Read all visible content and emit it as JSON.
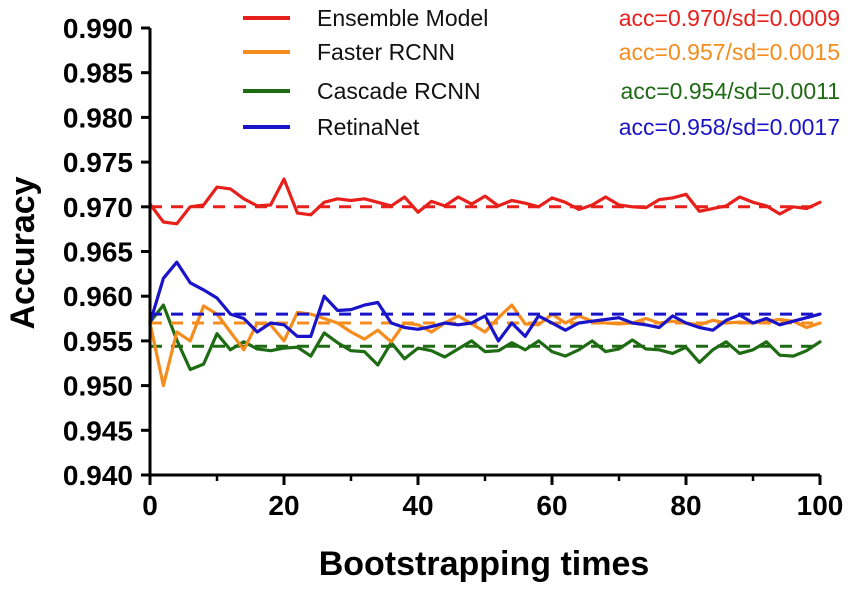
{
  "chart_data": {
    "type": "line",
    "title": "",
    "xlabel": "Bootstrapping times",
    "ylabel": "Accuracy",
    "xlim": [
      0,
      100
    ],
    "ylim": [
      0.94,
      0.99
    ],
    "xticks": [
      0,
      20,
      40,
      60,
      80,
      100
    ],
    "xtick_labels": [
      "0",
      "20",
      "40",
      "60",
      "80",
      "100"
    ],
    "yticks": [
      0.94,
      0.945,
      0.95,
      0.955,
      0.96,
      0.965,
      0.97,
      0.975,
      0.98,
      0.985,
      0.99
    ],
    "ytick_labels": [
      "0.940",
      "0.945",
      "0.950",
      "0.955",
      "0.960",
      "0.965",
      "0.970",
      "0.975",
      "0.980",
      "0.985",
      "0.990"
    ],
    "grid": false,
    "legend_position": "top-right",
    "x": [
      0,
      2,
      4,
      6,
      8,
      10,
      12,
      14,
      16,
      18,
      20,
      22,
      24,
      26,
      28,
      30,
      32,
      34,
      36,
      38,
      40,
      42,
      44,
      46,
      48,
      50,
      52,
      54,
      56,
      58,
      60,
      62,
      64,
      66,
      68,
      70,
      72,
      74,
      76,
      78,
      80,
      82,
      84,
      86,
      88,
      90,
      92,
      94,
      96,
      98,
      100
    ],
    "series": [
      {
        "name": "Ensemble Model",
        "color": "#e8201c",
        "stat": "acc=0.970/sd=0.0009",
        "mean": 0.97,
        "values": [
          0.9703,
          0.9683,
          0.9681,
          0.97,
          0.9702,
          0.9722,
          0.972,
          0.9709,
          0.9701,
          0.9702,
          0.9731,
          0.9693,
          0.9691,
          0.9705,
          0.9709,
          0.9707,
          0.9709,
          0.9705,
          0.9701,
          0.9711,
          0.9694,
          0.9706,
          0.9701,
          0.9711,
          0.9703,
          0.9712,
          0.9701,
          0.9707,
          0.9704,
          0.97,
          0.971,
          0.9705,
          0.9697,
          0.9702,
          0.9711,
          0.9702,
          0.97,
          0.9699,
          0.9708,
          0.971,
          0.9714,
          0.9695,
          0.9698,
          0.9701,
          0.9711,
          0.9705,
          0.9701,
          0.9692,
          0.97,
          0.9698,
          0.9705
        ]
      },
      {
        "name": "Faster RCNN",
        "color": "#f58d1e",
        "stat": "acc=0.957/sd=0.0015",
        "mean": 0.957,
        "values": [
          0.957,
          0.95,
          0.956,
          0.955,
          0.9589,
          0.958,
          0.956,
          0.954,
          0.957,
          0.9568,
          0.955,
          0.9582,
          0.958,
          0.9575,
          0.957,
          0.956,
          0.9552,
          0.9562,
          0.9549,
          0.957,
          0.9568,
          0.956,
          0.957,
          0.9578,
          0.9569,
          0.956,
          0.9576,
          0.959,
          0.9569,
          0.9568,
          0.958,
          0.957,
          0.9578,
          0.9572,
          0.957,
          0.9569,
          0.957,
          0.9575,
          0.957,
          0.9572,
          0.957,
          0.9568,
          0.9573,
          0.957,
          0.9571,
          0.957,
          0.9572,
          0.9574,
          0.9572,
          0.9565,
          0.957
        ]
      },
      {
        "name": "Cascade RCNN",
        "color": "#1e6b14",
        "stat": "acc=0.954/sd=0.0011",
        "mean": 0.9544,
        "values": [
          0.9571,
          0.959,
          0.9551,
          0.9518,
          0.9524,
          0.9558,
          0.954,
          0.9549,
          0.9541,
          0.9539,
          0.9542,
          0.9543,
          0.9533,
          0.9559,
          0.9548,
          0.9539,
          0.9538,
          0.9523,
          0.9548,
          0.953,
          0.9542,
          0.9539,
          0.9532,
          0.9541,
          0.955,
          0.9538,
          0.9539,
          0.9548,
          0.954,
          0.955,
          0.9538,
          0.9533,
          0.954,
          0.955,
          0.9538,
          0.9541,
          0.9551,
          0.9541,
          0.954,
          0.9536,
          0.9543,
          0.9526,
          0.954,
          0.9549,
          0.9536,
          0.954,
          0.9549,
          0.9534,
          0.9533,
          0.9539,
          0.9549
        ]
      },
      {
        "name": "RetinaNet",
        "color": "#1a14c8",
        "stat": "acc=0.958/sd=0.0017",
        "mean": 0.958,
        "values": [
          0.957,
          0.962,
          0.9638,
          0.9615,
          0.9607,
          0.9598,
          0.958,
          0.9575,
          0.956,
          0.957,
          0.9568,
          0.9555,
          0.9555,
          0.96,
          0.9584,
          0.9585,
          0.959,
          0.9593,
          0.957,
          0.9565,
          0.9563,
          0.9566,
          0.957,
          0.9568,
          0.957,
          0.9578,
          0.955,
          0.957,
          0.9555,
          0.9578,
          0.957,
          0.9562,
          0.957,
          0.9572,
          0.9574,
          0.9576,
          0.957,
          0.9568,
          0.9565,
          0.9578,
          0.957,
          0.9565,
          0.9562,
          0.9573,
          0.9579,
          0.957,
          0.9575,
          0.9568,
          0.9572,
          0.9576,
          0.958
        ]
      }
    ]
  }
}
